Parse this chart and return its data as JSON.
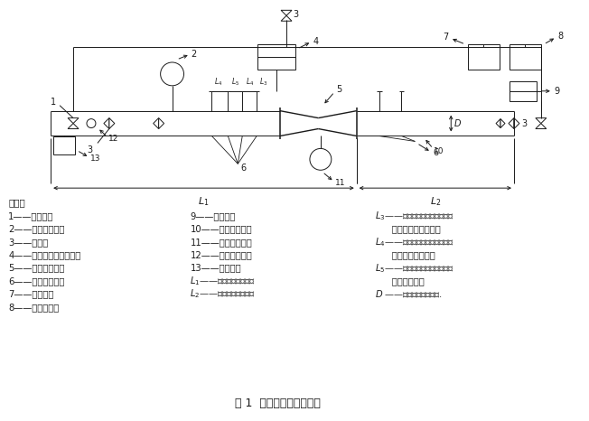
{
  "bg_color": "#ffffff",
  "line_color": "#1a1a1a",
  "title": "图 1  阻爆试验装置示意图",
  "legend_shuoming": "说明：",
  "legend_col1": [
    "1——火花塞；",
    "2——真空压力计；",
    "3——阀门；",
    "4——数据采集处理系统；",
    "5——待侧阻火器；",
    "6——火焰传感器；",
    "7——循环泵；",
    "8——可燃气源；"
  ],
  "legend_col2": [
    "9——流量计；",
    "10——保护侧管段；",
    "11——压力传感器；",
    "12——引爆侧管段；",
    "13——起爆器；",
    "$L_1$——引爆侧管段长度；",
    "$L_2$——保护侧管段长度；"
  ],
  "legend_col3": [
    "$L_3$——引爆侧最近端火焰传感器",
    "      与阻火器端面距离；",
    "$L_4$——两端火焰传感器与其相邻",
    "      火焰传感器距离；",
    "$L_5$——中间相邻两只火焰传感器",
    "      之间的距离；",
    "$D$ ——试验管路公称直径."
  ]
}
